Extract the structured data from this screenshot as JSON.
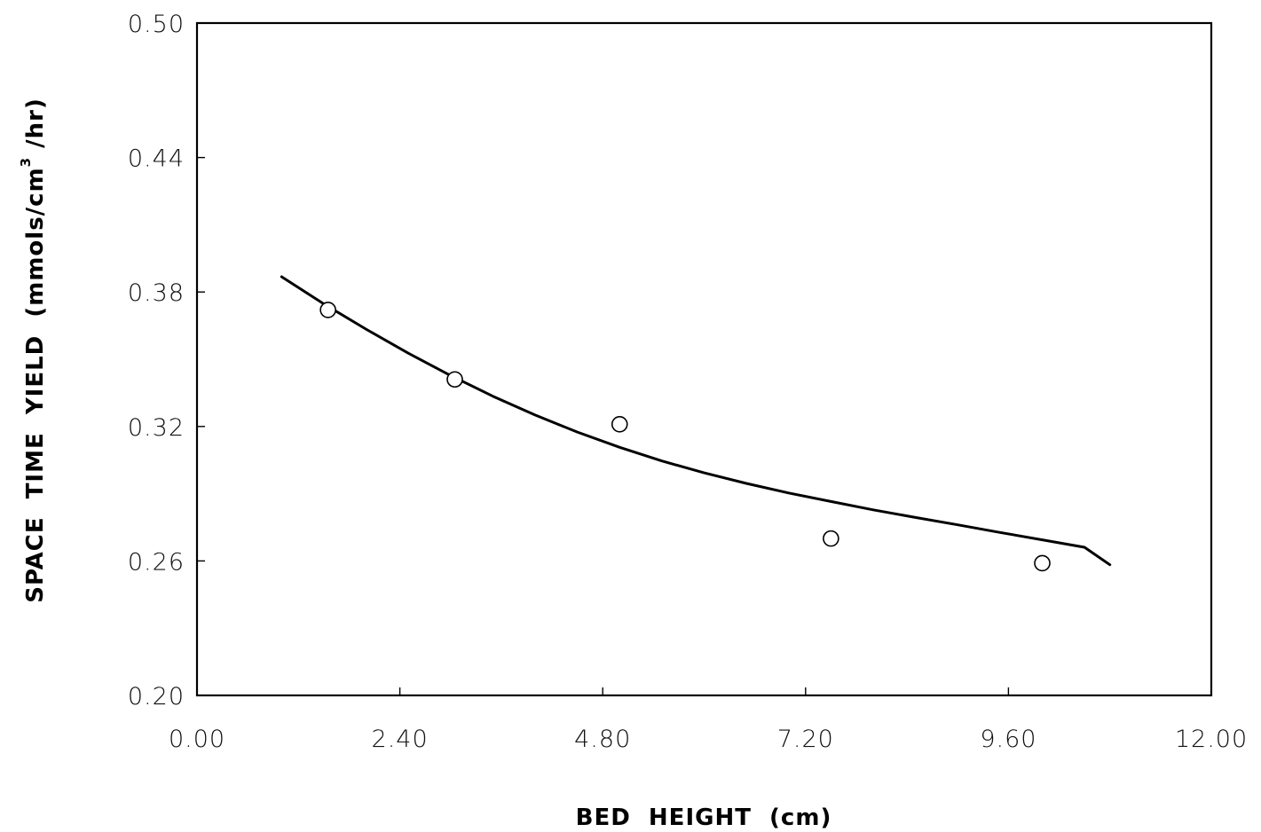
{
  "chart_data": {
    "type": "scatter",
    "title": "",
    "xlabel": "BED  HEIGHT  (cm)",
    "ylabel": {
      "prefix": "SPACE  TIME  YIELD  (mmols/cm",
      "superscript": "3",
      "suffix": " /hr)"
    },
    "xlim": [
      0.0,
      12.0
    ],
    "ylim": [
      0.2,
      0.5
    ],
    "x_ticks": [
      0.0,
      2.4,
      4.8,
      7.2,
      9.6,
      12.0
    ],
    "x_tick_labels": [
      "0.00",
      "2.40",
      "4.80",
      "7.20",
      "9.60",
      "12.00"
    ],
    "y_ticks": [
      0.2,
      0.26,
      0.32,
      0.38,
      0.44,
      0.5
    ],
    "y_tick_labels": [
      "0.20",
      "0.26",
      "0.32",
      "0.38",
      "0.44",
      "0.50"
    ],
    "grid": false,
    "series": [
      {
        "type": "scatter",
        "marker": "open-circle",
        "x": [
          1.55,
          3.05,
          5.0,
          7.5,
          10.0
        ],
        "y": [
          0.372,
          0.341,
          0.321,
          0.27,
          0.259
        ]
      },
      {
        "type": "line",
        "style": "fitted-curve",
        "x": [
          1.0,
          1.5,
          2.0,
          2.5,
          3.0,
          3.5,
          4.0,
          4.5,
          5.0,
          5.5,
          6.0,
          6.5,
          7.0,
          7.5,
          8.0,
          8.5,
          9.0,
          9.5,
          10.0,
          10.5,
          10.8
        ],
        "y": [
          0.3868,
          0.3747,
          0.3634,
          0.3527,
          0.3427,
          0.3335,
          0.3251,
          0.3175,
          0.3107,
          0.3046,
          0.2993,
          0.2946,
          0.2903,
          0.2865,
          0.2828,
          0.2794,
          0.2761,
          0.2727,
          0.2694,
          0.2661,
          0.2583
        ]
      }
    ],
    "colors": {
      "ink": "#000000"
    }
  }
}
